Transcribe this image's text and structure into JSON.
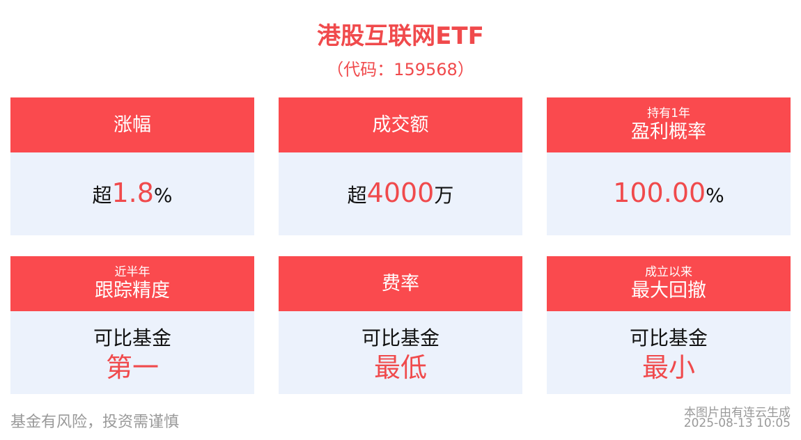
{
  "header": {
    "title": "港股互联网ETF",
    "subtitle": "（代码：159568）"
  },
  "cards": [
    {
      "label": "涨幅",
      "lines": [
        [
          {
            "text": "超"
          },
          {
            "text": "1.8",
            "em": true
          },
          {
            "text": "%"
          }
        ]
      ]
    },
    {
      "label": "成交额",
      "lines": [
        [
          {
            "text": "超"
          },
          {
            "text": "4000",
            "em": true
          },
          {
            "text": "万"
          }
        ]
      ]
    },
    {
      "note": "持有1年",
      "label": "盈利概率",
      "lines": [
        [
          {
            "text": "100.00",
            "em": true
          },
          {
            "text": "%"
          }
        ]
      ]
    },
    {
      "note": "近半年",
      "label": "跟踪精度",
      "lines": [
        [
          {
            "text": "可比基金"
          }
        ],
        [
          {
            "text": "第一",
            "em": true
          }
        ]
      ]
    },
    {
      "label": "费率",
      "lines": [
        [
          {
            "text": "可比基金"
          }
        ],
        [
          {
            "text": "最低",
            "em": true
          }
        ]
      ]
    },
    {
      "note": "成立以来",
      "label": "最大回撤",
      "lines": [
        [
          {
            "text": "可比基金"
          }
        ],
        [
          {
            "text": "最小",
            "em": true
          }
        ]
      ]
    }
  ],
  "footer": {
    "disclaimer": "基金有风险，投资需谨慎",
    "source": "本图片由有连云生成",
    "timestamp": "2025-08-13 10:05"
  }
}
